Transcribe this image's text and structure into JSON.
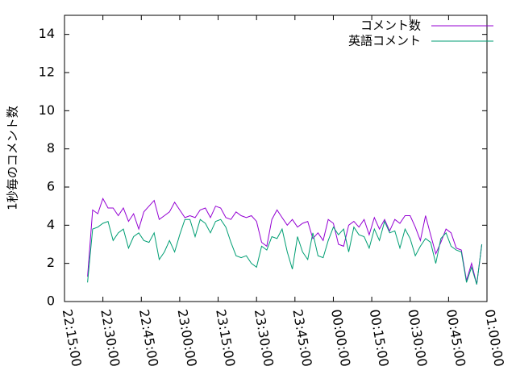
{
  "chart_data": {
    "type": "line",
    "ylabel": "1秒毎のコメント数",
    "legend": "top right",
    "xlim": [
      "22:15:00",
      "01:00:00"
    ],
    "xticks": [
      "22:15:00",
      "22:30:00",
      "22:45:00",
      "23:00:00",
      "23:15:00",
      "23:30:00",
      "23:45:00",
      "00:00:00",
      "00:15:00",
      "00:30:00",
      "00:45:00",
      "01:00:00"
    ],
    "ylim": [
      0,
      15
    ],
    "yticks": [
      0,
      2,
      4,
      6,
      8,
      10,
      12,
      14
    ],
    "x": [
      "22:24:00",
      "22:26:00",
      "22:28:00",
      "22:30:00",
      "22:32:00",
      "22:34:00",
      "22:36:00",
      "22:38:00",
      "22:40:00",
      "22:42:00",
      "22:44:00",
      "22:46:00",
      "22:48:00",
      "22:50:00",
      "22:52:00",
      "22:54:00",
      "22:56:00",
      "22:58:00",
      "23:00:00",
      "23:02:00",
      "23:04:00",
      "23:06:00",
      "23:08:00",
      "23:10:00",
      "23:12:00",
      "23:14:00",
      "23:16:00",
      "23:18:00",
      "23:20:00",
      "23:22:00",
      "23:24:00",
      "23:26:00",
      "23:28:00",
      "23:30:00",
      "23:32:00",
      "23:34:00",
      "23:36:00",
      "23:38:00",
      "23:40:00",
      "23:42:00",
      "23:44:00",
      "23:46:00",
      "23:48:00",
      "23:50:00",
      "23:52:00",
      "23:54:00",
      "23:56:00",
      "23:58:00",
      "00:00:00",
      "00:02:00",
      "00:04:00",
      "00:06:00",
      "00:08:00",
      "00:10:00",
      "00:12:00",
      "00:14:00",
      "00:16:00",
      "00:18:00",
      "00:20:00",
      "00:22:00",
      "00:24:00",
      "00:26:00",
      "00:28:00",
      "00:30:00",
      "00:32:00",
      "00:34:00",
      "00:36:00",
      "00:38:00",
      "00:40:00",
      "00:42:00",
      "00:44:00",
      "00:46:00",
      "00:48:00",
      "00:50:00",
      "00:52:00",
      "00:54:00",
      "00:56:00",
      "00:58:00"
    ],
    "series": [
      {
        "name": "コメント数",
        "color": "#9400d3",
        "values": [
          1.3,
          4.8,
          4.6,
          5.4,
          4.9,
          4.9,
          4.5,
          4.9,
          4.2,
          4.6,
          3.8,
          4.7,
          5.0,
          5.3,
          4.3,
          4.5,
          4.7,
          5.2,
          4.8,
          4.4,
          4.5,
          4.4,
          4.8,
          4.9,
          4.4,
          5.0,
          4.9,
          4.4,
          4.3,
          4.7,
          4.5,
          4.4,
          4.5,
          4.2,
          3.1,
          2.9,
          4.3,
          4.8,
          4.4,
          4.0,
          4.3,
          3.9,
          4.1,
          4.2,
          3.3,
          3.6,
          3.2,
          4.3,
          4.1,
          3.0,
          2.9,
          4.0,
          4.2,
          3.9,
          4.3,
          3.5,
          4.4,
          3.8,
          4.3,
          3.7,
          4.3,
          4.1,
          4.5,
          4.5,
          3.9,
          3.2,
          4.5,
          3.5,
          2.5,
          3.1,
          3.8,
          3.6,
          2.8,
          2.7,
          1.1,
          2.0,
          0.9,
          3.0
        ]
      },
      {
        "name": "英語コメント",
        "color": "#009e73",
        "values": [
          1.0,
          3.8,
          3.9,
          4.1,
          4.2,
          3.2,
          3.6,
          3.8,
          2.8,
          3.4,
          3.6,
          3.2,
          3.1,
          3.6,
          2.2,
          2.6,
          3.2,
          2.6,
          3.5,
          4.3,
          4.3,
          3.4,
          4.3,
          4.1,
          3.6,
          4.2,
          4.3,
          3.9,
          3.1,
          2.4,
          2.3,
          2.4,
          2.0,
          1.8,
          2.9,
          2.7,
          3.4,
          3.3,
          3.8,
          2.6,
          1.7,
          3.4,
          2.6,
          2.2,
          3.6,
          2.4,
          2.3,
          3.2,
          3.9,
          3.5,
          3.8,
          2.6,
          3.9,
          3.5,
          3.4,
          2.8,
          3.8,
          3.2,
          4.2,
          3.6,
          3.7,
          2.8,
          3.8,
          3.3,
          2.4,
          2.9,
          3.3,
          3.1,
          2.0,
          3.3,
          3.6,
          2.9,
          2.7,
          2.6,
          1.0,
          1.8,
          0.9,
          3.0
        ]
      }
    ]
  }
}
